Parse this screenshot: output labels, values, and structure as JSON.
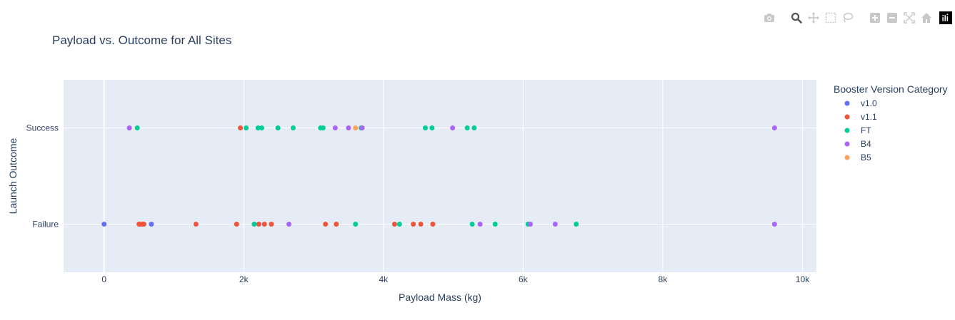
{
  "modebar": {
    "buttons": [
      "camera-icon",
      "zoom-icon",
      "pan-icon",
      "box-select-icon",
      "lasso-select-icon",
      "zoom-in-icon",
      "zoom-out-icon",
      "autoscale-icon",
      "reset-axes-icon"
    ],
    "active": "zoom-icon"
  },
  "chart_data": {
    "type": "scatter",
    "title": "Payload vs. Outcome for All Sites",
    "xlabel": "Payload Mass (kg)",
    "ylabel": "Launch Outcome",
    "xlim": [
      -580,
      10200
    ],
    "x_ticks": [
      0,
      2000,
      4000,
      6000,
      8000,
      10000
    ],
    "x_tick_labels": [
      "0",
      "2k",
      "4k",
      "6k",
      "8k",
      "10k"
    ],
    "y_categories": [
      "Failure",
      "Success"
    ],
    "legend_title": "Booster Version Category",
    "legend_position": "right",
    "grid": true,
    "plot_bgcolor": "#e5ecf6",
    "series": [
      {
        "name": "v1.0",
        "color": "#636efa",
        "points": [
          {
            "x": 0,
            "y": "Failure"
          },
          {
            "x": 677,
            "y": "Failure"
          }
        ]
      },
      {
        "name": "v1.1",
        "color": "#ef553b",
        "points": [
          {
            "x": 1952,
            "y": "Success"
          },
          {
            "x": 500,
            "y": "Failure"
          },
          {
            "x": 525,
            "y": "Failure"
          },
          {
            "x": 550,
            "y": "Failure"
          },
          {
            "x": 570,
            "y": "Failure"
          },
          {
            "x": 1316,
            "y": "Failure"
          },
          {
            "x": 1898,
            "y": "Failure"
          },
          {
            "x": 2216,
            "y": "Failure"
          },
          {
            "x": 2296,
            "y": "Failure"
          },
          {
            "x": 2395,
            "y": "Failure"
          },
          {
            "x": 3170,
            "y": "Failure"
          },
          {
            "x": 3325,
            "y": "Failure"
          },
          {
            "x": 4159,
            "y": "Failure"
          },
          {
            "x": 4428,
            "y": "Failure"
          },
          {
            "x": 4535,
            "y": "Failure"
          },
          {
            "x": 4707,
            "y": "Failure"
          }
        ]
      },
      {
        "name": "FT",
        "color": "#00cc96",
        "points": [
          {
            "x": 475,
            "y": "Success"
          },
          {
            "x": 2034,
            "y": "Success"
          },
          {
            "x": 2205,
            "y": "Success"
          },
          {
            "x": 2257,
            "y": "Success"
          },
          {
            "x": 2490,
            "y": "Success"
          },
          {
            "x": 2708,
            "y": "Success"
          },
          {
            "x": 3100,
            "y": "Success"
          },
          {
            "x": 3136,
            "y": "Success"
          },
          {
            "x": 3681,
            "y": "Success"
          },
          {
            "x": 4600,
            "y": "Success"
          },
          {
            "x": 4696,
            "y": "Success"
          },
          {
            "x": 5200,
            "y": "Success"
          },
          {
            "x": 5300,
            "y": "Success"
          },
          {
            "x": 2150,
            "y": "Failure"
          },
          {
            "x": 3600,
            "y": "Failure"
          },
          {
            "x": 4230,
            "y": "Failure"
          },
          {
            "x": 5271,
            "y": "Failure"
          },
          {
            "x": 5600,
            "y": "Failure"
          },
          {
            "x": 6070,
            "y": "Failure"
          },
          {
            "x": 6761,
            "y": "Failure"
          }
        ]
      },
      {
        "name": "B4",
        "color": "#ab63fa",
        "points": [
          {
            "x": 362,
            "y": "Success"
          },
          {
            "x": 3310,
            "y": "Success"
          },
          {
            "x": 3500,
            "y": "Success"
          },
          {
            "x": 3696,
            "y": "Success"
          },
          {
            "x": 4990,
            "y": "Success"
          },
          {
            "x": 9600,
            "y": "Success"
          },
          {
            "x": 2647,
            "y": "Failure"
          },
          {
            "x": 5384,
            "y": "Failure"
          },
          {
            "x": 6104,
            "y": "Failure"
          },
          {
            "x": 6460,
            "y": "Failure"
          },
          {
            "x": 9600,
            "y": "Failure"
          }
        ]
      },
      {
        "name": "B5",
        "color": "#ffa15a",
        "points": [
          {
            "x": 3600,
            "y": "Success"
          }
        ]
      }
    ]
  }
}
